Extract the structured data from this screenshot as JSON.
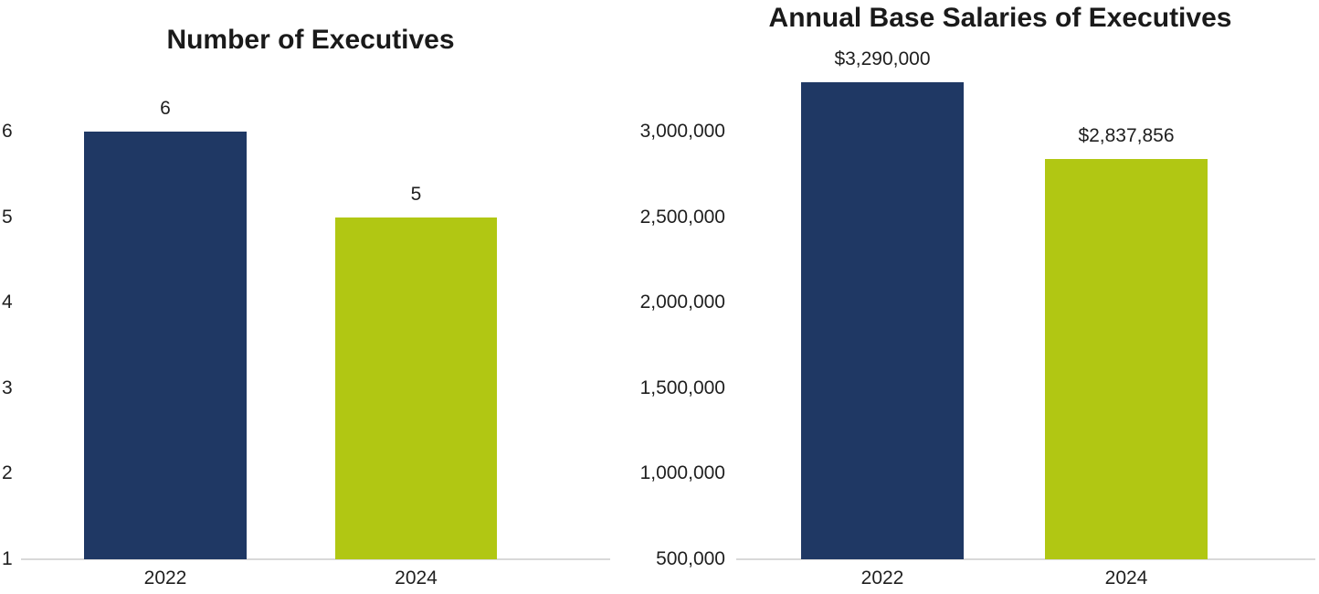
{
  "colors": {
    "bar_2022": "#1F3864",
    "bar_2024": "#B1C713",
    "axis_line": "#D9D9D9",
    "text": "#1F1F1F",
    "title_text": "#1A1A1A",
    "background": "#FFFFFF"
  },
  "chart_data": [
    {
      "type": "bar",
      "title": "Number of Executives",
      "categories": [
        "2022",
        "2024"
      ],
      "values": [
        6,
        5
      ],
      "value_labels": [
        "6",
        "5"
      ],
      "bar_colors": [
        "#1F3864",
        "#B1C713"
      ],
      "xlabel": "",
      "ylabel": "",
      "y_min": 1,
      "y_tick_step": 1,
      "y_tick_values": [
        1,
        2,
        3,
        4,
        5,
        6
      ],
      "y_tick_labels": [
        "1",
        "2",
        "3",
        "4",
        "5",
        "6"
      ],
      "ylim": [
        1,
        6.5
      ],
      "grid": "off",
      "legend": "none"
    },
    {
      "type": "bar",
      "title": "Annual Base Salaries of Executives",
      "categories": [
        "2022",
        "2024"
      ],
      "values": [
        3290000,
        2837856
      ],
      "value_labels": [
        "$3,290,000",
        "$2,837,856"
      ],
      "bar_colors": [
        "#1F3864",
        "#B1C713"
      ],
      "xlabel": "",
      "ylabel": "",
      "y_min": 500000,
      "y_tick_step": 500000,
      "y_tick_values": [
        500000,
        1000000,
        1500000,
        2000000,
        2500000,
        3000000
      ],
      "y_tick_labels": [
        "500,000",
        "1,000,000",
        "1,500,000",
        "2,000,000",
        "2,500,000",
        "3,000,000"
      ],
      "ylim": [
        500000,
        3400000
      ],
      "grid": "off",
      "legend": "none"
    }
  ]
}
